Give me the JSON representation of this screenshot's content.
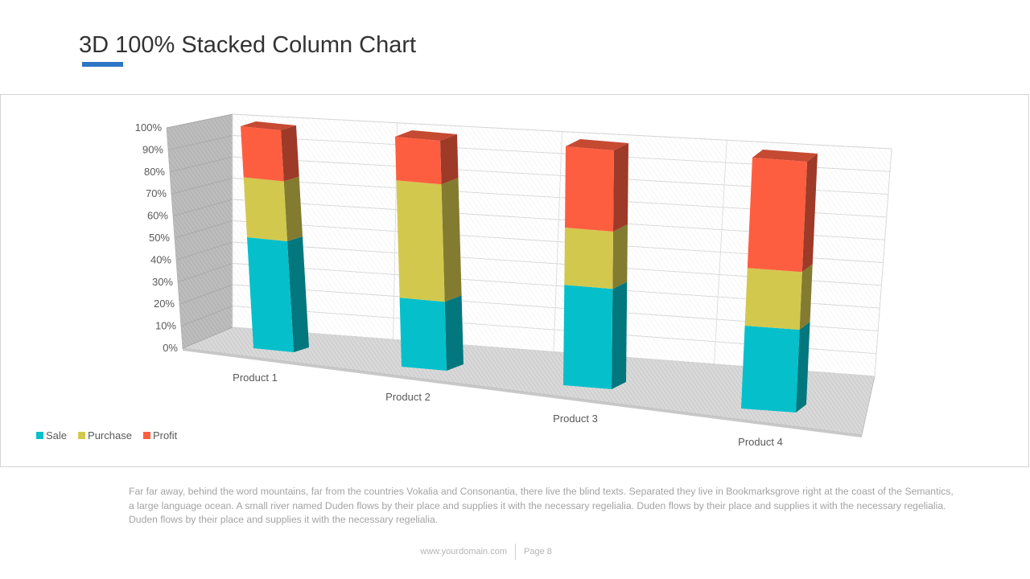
{
  "slide": {
    "title": "3D 100% Stacked Column  Chart",
    "accent_color": "#2e75c4",
    "body_text": "Far far away, behind the word mountains, far from the countries Vokalia and Consonantia, there live the blind texts. Separated they live in Bookmarksgrove right at the coast of the Semantics, a large language ocean. A small river named Duden flows by their place and supplies it with the necessary regelialia. Duden flows by their place and supplies it with the necessary regelialia. Duden flows by their place and supplies it with the necessary regelialia.",
    "footer_url": "www.yourdomain.com",
    "footer_page": "Page 8"
  },
  "chart_data": {
    "type": "bar",
    "stacking": "percent",
    "style": "3d",
    "categories": [
      "Product 1",
      "Product 2",
      "Product 3",
      "Product 4"
    ],
    "series": [
      {
        "name": "Sale",
        "values": [
          50,
          30,
          42,
          33
        ],
        "color": "#05c0cb"
      },
      {
        "name": "Purchase",
        "values": [
          27,
          51,
          24,
          23
        ],
        "color": "#d3c84e"
      },
      {
        "name": "Profit",
        "values": [
          23,
          19,
          34,
          44
        ],
        "color": "#fe5e40"
      }
    ],
    "y_ticks": [
      "0%",
      "10%",
      "20%",
      "30%",
      "40%",
      "50%",
      "60%",
      "70%",
      "80%",
      "90%",
      "100%"
    ],
    "ylim": [
      0,
      100
    ],
    "grid": true,
    "legend_position": "bottom-left"
  }
}
